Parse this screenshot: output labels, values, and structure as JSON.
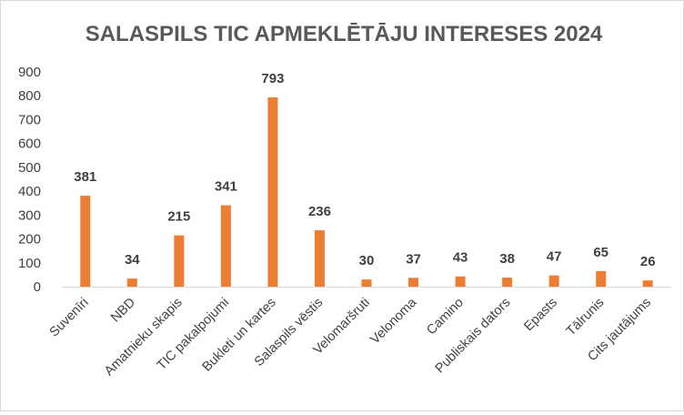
{
  "chart_data": {
    "type": "bar",
    "title": "SALASPILS TIC APMEKLĒTĀJU INTERESES 2024",
    "xlabel": "",
    "ylabel": "",
    "ylim": [
      0,
      900
    ],
    "yticks": [
      0,
      100,
      200,
      300,
      400,
      500,
      600,
      700,
      800,
      900
    ],
    "grid": false,
    "legend": "none",
    "bar_color": "#ED7D31",
    "categories": [
      "Suvenīri",
      "NBD",
      "Amatnieku skapis",
      "TIC pakalpojumi",
      "Bukleti un kartes",
      "Salaspils vēstis",
      "Velomaršruti",
      "Velonoma",
      "Camino",
      "Publiskais dators",
      "Epasts",
      "Tālrunis",
      "Cits jautājums"
    ],
    "values": [
      381,
      34,
      215,
      341,
      793,
      236,
      30,
      37,
      43,
      38,
      47,
      65,
      26
    ]
  }
}
